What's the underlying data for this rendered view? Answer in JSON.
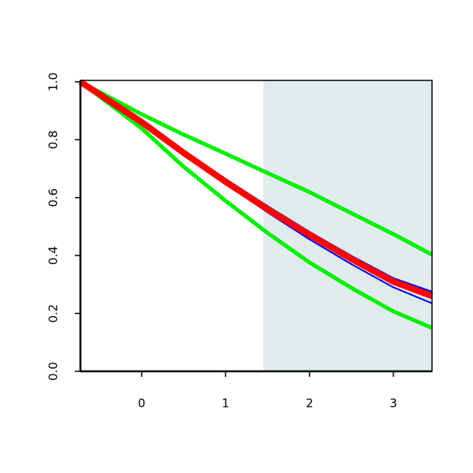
{
  "chart_data": {
    "type": "line",
    "x": [
      -0.73,
      0,
      0.5,
      1,
      1.5,
      2,
      2.5,
      3,
      3.46
    ],
    "series": [
      {
        "color": "#00ee00",
        "width": 5,
        "values": [
          1,
          0.888,
          0.818,
          0.752,
          0.685,
          0.619,
          0.546,
          0.474,
          0.403
        ]
      },
      {
        "color": "#00ee00",
        "width": 5,
        "values": [
          1,
          0.839,
          0.707,
          0.589,
          0.478,
          0.376,
          0.288,
          0.207,
          0.15
        ]
      },
      {
        "color": "#0000ee",
        "width": 2,
        "values": [
          1,
          0.866,
          0.762,
          0.665,
          0.571,
          0.482,
          0.399,
          0.322,
          0.275
        ]
      },
      {
        "color": "#0000ee",
        "width": 2,
        "values": [
          1,
          0.856,
          0.748,
          0.648,
          0.549,
          0.456,
          0.37,
          0.29,
          0.235
        ]
      },
      {
        "color": "#ff0000",
        "width": 8,
        "values": [
          1,
          0.861,
          0.755,
          0.655,
          0.56,
          0.472,
          0.388,
          0.31,
          0.26
        ]
      }
    ],
    "shaded_region": {
      "xlim": [
        1.45,
        3.46
      ],
      "color": "#e0ecec"
    },
    "xlim": [
      -0.73,
      3.46
    ],
    "ylim": [
      0,
      1.005
    ],
    "xticks": [
      0,
      1,
      2,
      3
    ],
    "yticks": [
      {
        "value": 0,
        "label": "0.0"
      },
      0.2,
      0.4,
      0.6,
      0.8,
      {
        "value": 1,
        "label": "1.0"
      }
    ]
  }
}
